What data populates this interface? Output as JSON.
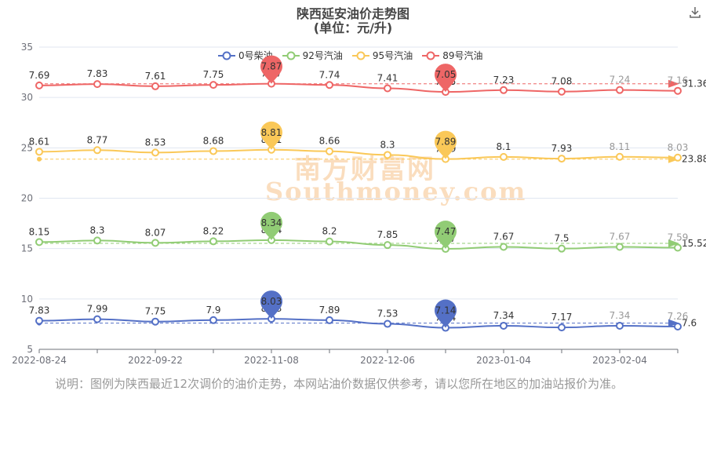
{
  "title": "陕西延安油价走势图",
  "subtitle": "(单位：元/升)",
  "download_icon": "download-icon",
  "watermark": {
    "cn": "南方财富网",
    "en": "Southmoney.com"
  },
  "note": "说明：图例为陕西最近12次调价的油价走势，本网站油价数据仅供参考，请以您所在地区的加油站报价为准。",
  "colors": {
    "diesel0": "#5470c6",
    "gas92": "#91cc75",
    "gas95": "#fac858",
    "gas89": "#ee6666",
    "axis": "#6e7079",
    "grid": "#e0e6f1"
  },
  "chart_data": {
    "type": "line",
    "ylim": [
      5,
      35
    ],
    "yticks": [
      "5",
      "10",
      "15",
      "20",
      "25",
      "30",
      "35"
    ],
    "xtick_labels": [
      "2022-08-24",
      "2022-09-22",
      "2022-11-08",
      "2022-12-06",
      "2023-01-04",
      "2023-02-04"
    ],
    "x": [
      "2022-08-24",
      "2022-09-07",
      "2022-09-22",
      "2022-10-12",
      "2022-11-08",
      "2022-11-22",
      "2022-12-06",
      "2022-12-19",
      "2023-01-04",
      "2023-01-17",
      "2023-02-04",
      "2023-02-17"
    ],
    "legend_position": "top-center",
    "grid": true,
    "series": [
      {
        "name": "0号柴油",
        "key": "diesel0",
        "labels": [
          7.83,
          7.99,
          7.75,
          7.9,
          8.03,
          7.89,
          7.53,
          7.14,
          7.34,
          7.17,
          7.34,
          7.26
        ],
        "max": {
          "value": "8.03"
        },
        "min": {
          "value": "7.14"
        },
        "average": "7.6"
      },
      {
        "name": "92号汽油",
        "key": "gas92",
        "labels": [
          8.15,
          8.3,
          8.07,
          8.22,
          8.34,
          8.2,
          7.85,
          7.47,
          7.67,
          7.5,
          7.67,
          7.59
        ],
        "max": {
          "value": "8.34"
        },
        "min": {
          "value": "7.47"
        },
        "average": "15.52"
      },
      {
        "name": "95号汽油",
        "key": "gas95",
        "labels": [
          8.61,
          8.77,
          8.53,
          8.68,
          8.81,
          8.66,
          8.3,
          7.89,
          8.1,
          7.93,
          8.11,
          8.03
        ],
        "max": {
          "value": "8.81"
        },
        "min": {
          "value": "7.89"
        },
        "average": "23.88"
      },
      {
        "name": "89号汽油",
        "key": "gas89",
        "labels": [
          7.69,
          7.83,
          7.61,
          7.75,
          7.87,
          7.74,
          7.41,
          7.05,
          7.23,
          7.08,
          7.24,
          7.16
        ],
        "max": {
          "value": "7.87"
        },
        "min": {
          "value": "7.05"
        },
        "average": "31.36"
      }
    ]
  }
}
